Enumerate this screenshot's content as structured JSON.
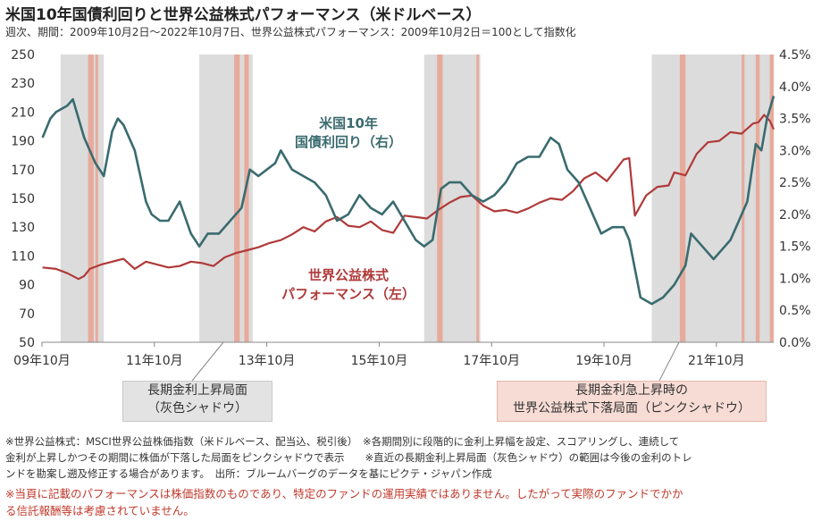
{
  "header": {
    "title": "米国10年国債利回りと世界公益株式パフォーマンス（米ドルベース）",
    "subtitle": "週次、期間：2009年10月2日～2022年10月7日、世界公益株式パフォーマンス：2009年10月2日＝100として指数化"
  },
  "chart_data": {
    "type": "line",
    "x_ticks": [
      "09年10月",
      "11年10月",
      "13年10月",
      "15年10月",
      "17年10月",
      "19年10月",
      "21年10月"
    ],
    "x_tick_years": [
      2009.75,
      2011.75,
      2013.75,
      2015.75,
      2017.75,
      2019.75,
      2021.75
    ],
    "xlim": [
      2009.75,
      2022.77
    ],
    "y_left": {
      "ylim": [
        50,
        250
      ],
      "ticks": [
        "50",
        "70",
        "90",
        "110",
        "130",
        "150",
        "170",
        "190",
        "210",
        "230",
        "250"
      ]
    },
    "y_right": {
      "ylim": [
        0,
        4.5
      ],
      "ticks": [
        "0.0%",
        "0.5%",
        "1.0%",
        "1.5%",
        "2.0%",
        "2.5%",
        "3.0%",
        "3.5%",
        "4.0%",
        "4.5%"
      ]
    },
    "gray_shadows": [
      [
        2010.08,
        2010.85
      ],
      [
        2012.55,
        2013.5
      ],
      [
        2016.55,
        2017.55
      ],
      [
        2020.6,
        2022.77
      ]
    ],
    "pink_shadows": [
      [
        2010.57,
        2010.67
      ],
      [
        2010.7,
        2010.73
      ],
      [
        2013.17,
        2013.27
      ],
      [
        2013.35,
        2013.43
      ],
      [
        2016.78,
        2016.88
      ],
      [
        2017.48,
        2017.52
      ],
      [
        2021.1,
        2021.2
      ],
      [
        2022.2,
        2022.25
      ],
      [
        2022.45,
        2022.52
      ],
      [
        2022.7,
        2022.77
      ]
    ],
    "series": [
      {
        "name": "世界公益株式パフォーマンス（左）",
        "axis": "left",
        "color": "#b03a3a",
        "x": [
          2009.76,
          2010.0,
          2010.2,
          2010.4,
          2010.5,
          2010.6,
          2010.8,
          2011.0,
          2011.2,
          2011.4,
          2011.6,
          2011.8,
          2012.0,
          2012.2,
          2012.4,
          2012.6,
          2012.8,
          2013.0,
          2013.2,
          2013.4,
          2013.6,
          2013.8,
          2014.0,
          2014.2,
          2014.4,
          2014.6,
          2014.8,
          2015.0,
          2015.2,
          2015.4,
          2015.6,
          2015.8,
          2016.0,
          2016.2,
          2016.4,
          2016.6,
          2016.8,
          2017.0,
          2017.2,
          2017.4,
          2017.6,
          2017.8,
          2018.0,
          2018.2,
          2018.4,
          2018.6,
          2018.8,
          2019.0,
          2019.2,
          2019.4,
          2019.6,
          2019.8,
          2020.0,
          2020.1,
          2020.2,
          2020.3,
          2020.5,
          2020.7,
          2020.9,
          2021.0,
          2021.2,
          2021.4,
          2021.6,
          2021.8,
          2022.0,
          2022.2,
          2022.4,
          2022.5,
          2022.6,
          2022.7,
          2022.77
        ],
        "values": [
          102,
          101,
          98,
          94,
          96,
          101,
          104,
          106,
          108,
          101,
          106,
          104,
          102,
          103,
          106,
          105,
          103,
          109,
          112,
          114,
          116,
          119,
          121,
          125,
          130,
          127,
          134,
          137,
          131,
          130,
          134,
          128,
          126,
          138,
          137,
          136,
          142,
          147,
          151,
          152,
          145,
          141,
          142,
          140,
          143,
          147,
          150,
          149,
          155,
          164,
          168,
          162,
          172,
          177,
          178,
          138,
          152,
          158,
          159,
          168,
          166,
          181,
          189,
          190,
          196,
          195,
          202,
          203,
          208,
          204,
          198
        ]
      },
      {
        "name": "米国10年国債利回り（右）",
        "axis": "right",
        "color": "#3a6b6f",
        "x": [
          2009.76,
          2009.9,
          2010.0,
          2010.2,
          2010.3,
          2010.5,
          2010.7,
          2010.85,
          2011.0,
          2011.1,
          2011.2,
          2011.4,
          2011.6,
          2011.7,
          2011.85,
          2012.0,
          2012.2,
          2012.4,
          2012.55,
          2012.7,
          2012.9,
          2013.1,
          2013.3,
          2013.45,
          2013.6,
          2013.75,
          2013.9,
          2014.0,
          2014.2,
          2014.4,
          2014.6,
          2014.8,
          2015.0,
          2015.2,
          2015.4,
          2015.6,
          2015.8,
          2016.0,
          2016.2,
          2016.4,
          2016.55,
          2016.7,
          2016.85,
          2017.0,
          2017.2,
          2017.4,
          2017.6,
          2017.8,
          2018.0,
          2018.2,
          2018.4,
          2018.6,
          2018.8,
          2018.95,
          2019.1,
          2019.3,
          2019.5,
          2019.7,
          2019.9,
          2020.1,
          2020.2,
          2020.4,
          2020.6,
          2020.8,
          2021.0,
          2021.2,
          2021.3,
          2021.5,
          2021.7,
          2021.9,
          2022.0,
          2022.1,
          2022.3,
          2022.45,
          2022.55,
          2022.65,
          2022.77
        ],
        "values": [
          3.2,
          3.5,
          3.6,
          3.7,
          3.8,
          3.2,
          2.8,
          2.6,
          3.3,
          3.5,
          3.4,
          3.0,
          2.2,
          2.0,
          1.9,
          1.9,
          2.2,
          1.7,
          1.5,
          1.7,
          1.7,
          1.9,
          2.1,
          2.7,
          2.6,
          2.7,
          2.8,
          3.0,
          2.7,
          2.6,
          2.5,
          2.3,
          1.9,
          2.0,
          2.3,
          2.1,
          2.0,
          2.2,
          1.9,
          1.6,
          1.5,
          1.6,
          2.4,
          2.5,
          2.5,
          2.3,
          2.2,
          2.3,
          2.5,
          2.8,
          2.9,
          2.9,
          3.2,
          3.1,
          2.7,
          2.5,
          2.1,
          1.7,
          1.8,
          1.8,
          1.6,
          0.7,
          0.6,
          0.7,
          0.9,
          1.2,
          1.7,
          1.5,
          1.3,
          1.5,
          1.6,
          1.8,
          2.2,
          3.1,
          3.0,
          3.5,
          3.85
        ]
      }
    ],
    "annotations": [
      {
        "text_lines": [
          "米国10年",
          "国債利回り（右）"
        ],
        "color": "#3a6b6f"
      },
      {
        "text_lines": [
          "世界公益株式",
          "パフォーマンス（左）"
        ],
        "color": "#b03a3a"
      }
    ],
    "callouts": {
      "gray": [
        "長期金利上昇局面",
        "（灰色シャドウ）"
      ],
      "pink": [
        "長期金利急上昇時の",
        "世界公益株式下落局面（ピンクシャドウ）"
      ]
    }
  },
  "footnotes": {
    "line1": "※世界公益株式：MSCI世界公益株価指数（米ドルベース、配当込、税引後）　※各期間別に段階的に金利上昇幅を設定、スコアリングし、連続して",
    "line2": "金利が上昇しかつその期間に株価が下落した局面をピンクシャドウで表示　　※直近の長期金利上昇局面（灰色シャドウ）の範囲は今後の金利のトレ",
    "line3": "ンドを勘案し遡及修正する場合があります。　出所：ブルームバーグのデータを基にピクテ・ジャパン作成",
    "warning1": "※当頁に記載のパフォーマンスは株価指数のものであり、特定のファンドの運用実績ではありません。したがって実際のファンドでかか",
    "warning2": "る信託報酬等は考慮されていません。"
  }
}
